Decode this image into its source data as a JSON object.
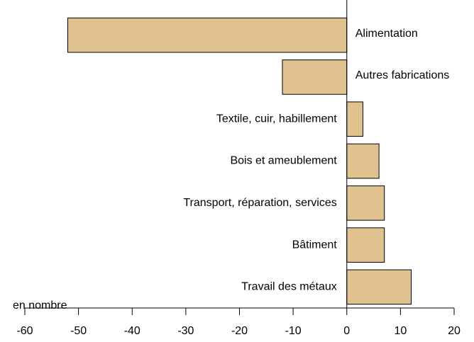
{
  "chart_data": {
    "type": "barh",
    "x_axis_label": "en nombre",
    "categories": [
      "Alimentation",
      "Autres fabrications",
      "Textile, cuir, habillement",
      "Bois et ameublement",
      "Transport, réparation, services",
      "Bâtiment",
      "Travail des métaux"
    ],
    "values": [
      -52,
      -12,
      3,
      6,
      7,
      7,
      12
    ],
    "color": "#dfc28e",
    "xlim": [
      -60,
      20
    ],
    "xticks": [
      -60,
      -50,
      -40,
      -30,
      -20,
      -10,
      0,
      10,
      20
    ],
    "grid": false
  }
}
